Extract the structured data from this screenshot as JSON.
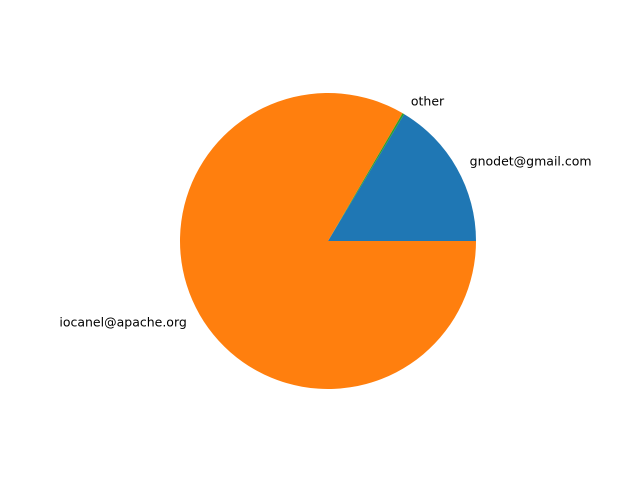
{
  "chart_data": {
    "type": "pie",
    "slices": [
      {
        "label": "gnodet@gmail.com",
        "value": 16.4,
        "color": "#1f77b4"
      },
      {
        "label": "other",
        "value": 0.2,
        "color": "#2ca02c"
      },
      {
        "label": "iocanel@apache.org",
        "value": 83.4,
        "color": "#ff7f0e"
      }
    ],
    "start_angle_deg": 0,
    "direction": "counterclockwise",
    "legend": "none",
    "title": ""
  }
}
